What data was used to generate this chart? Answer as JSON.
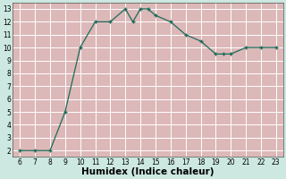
{
  "data_x": [
    6,
    7,
    8,
    9,
    10,
    11,
    12,
    13,
    13.5,
    14,
    14.5,
    15,
    16,
    17,
    18,
    19,
    19.5,
    20,
    21,
    22,
    23
  ],
  "data_y": [
    2,
    2,
    2,
    5,
    10,
    12,
    12,
    13,
    12,
    13,
    13,
    12.5,
    12,
    11,
    10.5,
    9.5,
    9.5,
    9.5,
    10,
    10,
    10
  ],
  "line_color": "#1a6b5a",
  "marker_color": "#1a6b5a",
  "bg_color": "#cce8e0",
  "grid_major_color": "#ffffff",
  "grid_minor_color": "#ddb8b8",
  "xlabel": "Humidex (Indice chaleur)",
  "xlim": [
    5.5,
    23.5
  ],
  "ylim": [
    1.5,
    13.5
  ],
  "xticks": [
    6,
    7,
    8,
    9,
    10,
    11,
    12,
    13,
    14,
    15,
    16,
    17,
    18,
    19,
    20,
    21,
    22,
    23
  ],
  "yticks": [
    2,
    3,
    4,
    5,
    6,
    7,
    8,
    9,
    10,
    11,
    12,
    13
  ],
  "tick_fontsize": 5.5,
  "label_fontsize": 7.5
}
